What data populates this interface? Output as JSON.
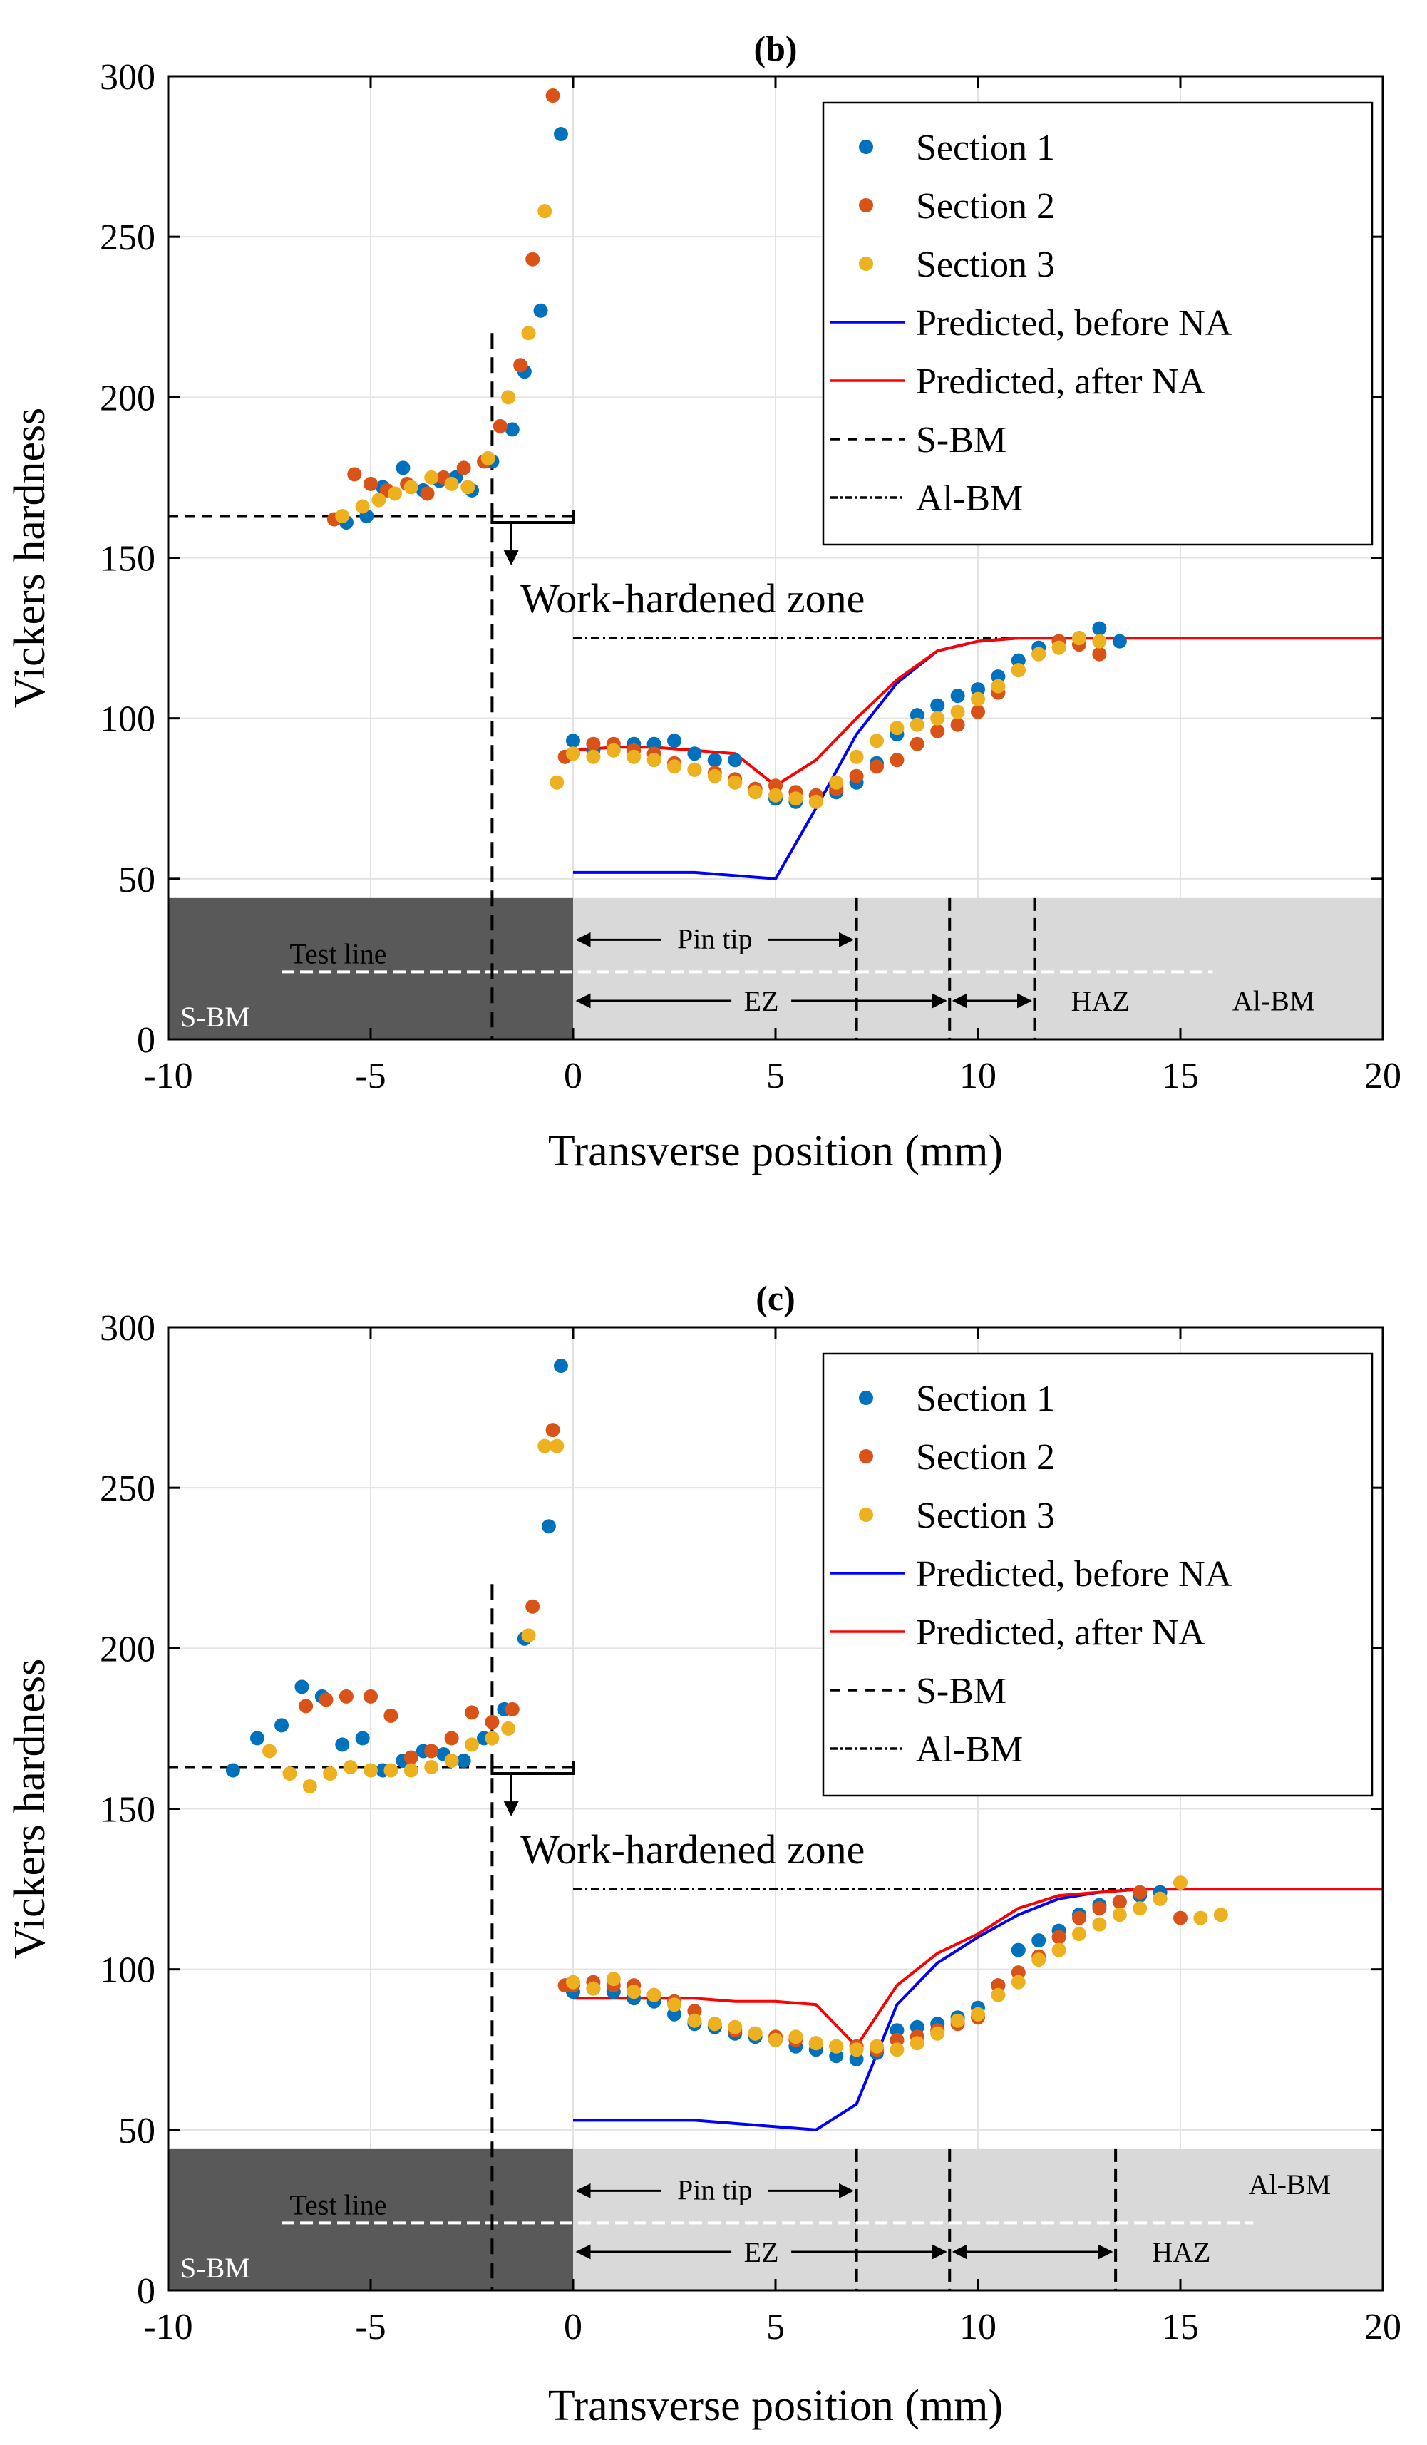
{
  "chart_data": [
    {
      "type": "scatter",
      "title": "(b)",
      "xlabel": "Transverse position (mm)",
      "ylabel": "Vickers hardness",
      "xlim": [
        -10,
        20
      ],
      "ylim": [
        0,
        300
      ],
      "xticks": [
        -10,
        -5,
        0,
        5,
        10,
        15,
        20
      ],
      "yticks": [
        0,
        50,
        100,
        150,
        200,
        250,
        300
      ],
      "grid": true,
      "legend_position": "top-right",
      "colors": {
        "s1": "#0072BD",
        "s2": "#D95319",
        "s3": "#EDB120",
        "before": "#0000FF",
        "after": "#FF0000"
      },
      "legend": [
        "Section 1",
        "Section 2",
        "Section 3",
        "Predicted, before NA",
        "Predicted, after NA",
        "S-BM",
        "Al-BM"
      ],
      "series": [
        {
          "name": "Section 1",
          "x": [
            -5.6,
            -5.1,
            -4.7,
            -4.2,
            -3.7,
            -3.3,
            -2.9,
            -2.5,
            -2.0,
            -1.5,
            -1.2,
            -0.8,
            -0.3,
            0,
            0.5,
            1,
            1.5,
            2,
            2.5,
            3,
            3.5,
            4,
            4.5,
            5,
            5.5,
            6,
            6.5,
            7,
            7.5,
            8,
            8.5,
            9,
            9.5,
            10,
            10.5,
            11,
            11.5,
            12,
            12.5,
            13,
            13.5
          ],
          "y": [
            161,
            163,
            172,
            178,
            171,
            174,
            175,
            171,
            180,
            190,
            208,
            227,
            282,
            93,
            90,
            91,
            92,
            92,
            93,
            89,
            87,
            87,
            78,
            75,
            74,
            76,
            77,
            80,
            86,
            95,
            101,
            104,
            107,
            109,
            113,
            118,
            122,
            124,
            125,
            128,
            124
          ]
        },
        {
          "name": "Section 2",
          "x": [
            -5.9,
            -5.4,
            -5.0,
            -4.6,
            -4.1,
            -3.6,
            -3.2,
            -2.7,
            -2.2,
            -1.8,
            -1.3,
            -1.0,
            -0.5,
            -0.2,
            0,
            0.5,
            1,
            1.5,
            2,
            2.5,
            3,
            3.5,
            4,
            4.5,
            5,
            5.5,
            6,
            6.5,
            7,
            7.5,
            8,
            8.5,
            9,
            9.5,
            10,
            10.5,
            11,
            11.5,
            12,
            12.5,
            13
          ],
          "y": [
            162,
            176,
            173,
            171,
            173,
            170,
            175,
            178,
            180,
            191,
            210,
            243,
            294,
            88,
            89,
            92,
            92,
            90,
            89,
            86,
            84,
            83,
            81,
            78,
            79,
            77,
            76,
            78,
            82,
            85,
            87,
            92,
            96,
            98,
            102,
            108,
            115,
            120,
            124,
            123,
            120
          ]
        },
        {
          "name": "Section 3",
          "x": [
            -5.7,
            -5.2,
            -4.8,
            -4.4,
            -4.0,
            -3.5,
            -3.0,
            -2.6,
            -2.1,
            -1.6,
            -1.1,
            -0.7,
            -0.4,
            0,
            0.5,
            1,
            1.5,
            2,
            2.5,
            3,
            3.5,
            4,
            4.5,
            5,
            5.5,
            6,
            6.5,
            7,
            7.5,
            8,
            8.5,
            9,
            9.5,
            10,
            10.5,
            11,
            11.5,
            12,
            12.5,
            13
          ],
          "y": [
            163,
            166,
            168,
            170,
            172,
            175,
            173,
            172,
            181,
            200,
            220,
            258,
            80,
            89,
            88,
            90,
            88,
            87,
            85,
            84,
            82,
            80,
            77,
            76,
            75,
            74,
            80,
            88,
            93,
            97,
            98,
            100,
            102,
            106,
            110,
            115,
            120,
            122,
            125,
            124
          ]
        },
        {
          "name": "Predicted, before NA",
          "x": [
            0,
            1,
            2,
            3,
            4,
            5,
            6,
            7,
            8,
            9,
            10,
            11,
            12,
            13,
            14,
            15,
            16,
            17,
            18,
            19,
            20
          ],
          "y": [
            52,
            52,
            52,
            52,
            51,
            50,
            72,
            95,
            111,
            121,
            124,
            125,
            125,
            125,
            125,
            125,
            125,
            125,
            125,
            125,
            125
          ]
        },
        {
          "name": "Predicted, after NA",
          "x": [
            0,
            1,
            2,
            3,
            4,
            5,
            6,
            7,
            8,
            9,
            10,
            11,
            12,
            13,
            14,
            15,
            16,
            17,
            18,
            19,
            20
          ],
          "y": [
            90,
            91,
            91,
            90,
            89,
            79,
            87,
            100,
            112,
            121,
            124,
            125,
            125,
            125,
            125,
            125,
            125,
            125,
            125,
            125,
            125
          ]
        },
        {
          "name": "S-BM",
          "x": [
            -10,
            0
          ],
          "y": [
            163,
            163
          ]
        },
        {
          "name": "Al-BM",
          "x": [
            0,
            20
          ],
          "y": [
            125,
            125
          ]
        }
      ],
      "annotations": {
        "work_hardened": "Work-hardened zone",
        "sbm": "S-BM",
        "albm": "Al-BM",
        "test_line": "Test line",
        "pin_tip": "Pin tip",
        "ez": "EZ",
        "haz": "HAZ"
      },
      "regions": {
        "steel_block": [
          -10,
          0
        ],
        "al_block": [
          0,
          20
        ],
        "block_top_y": 44,
        "pin_tip_end": 7,
        "ez_end": 9.3,
        "haz_end": 11.4,
        "test_line_x": [
          -7.2,
          15.8
        ],
        "work_hardened_x": [
          -2,
          0
        ]
      }
    },
    {
      "type": "scatter",
      "title": "(c)",
      "xlabel": "Transverse position (mm)",
      "ylabel": "Vickers hardness",
      "xlim": [
        -10,
        20
      ],
      "ylim": [
        0,
        300
      ],
      "xticks": [
        -10,
        -5,
        0,
        5,
        10,
        15,
        20
      ],
      "yticks": [
        0,
        50,
        100,
        150,
        200,
        250,
        300
      ],
      "grid": true,
      "legend_position": "top-right",
      "colors": {
        "s1": "#0072BD",
        "s2": "#D95319",
        "s3": "#EDB120",
        "before": "#0000FF",
        "after": "#FF0000"
      },
      "legend": [
        "Section 1",
        "Section 2",
        "Section 3",
        "Predicted, before NA",
        "Predicted, after NA",
        "S-BM",
        "Al-BM"
      ],
      "series": [
        {
          "name": "Section 1",
          "x": [
            -8.4,
            -7.8,
            -7.2,
            -6.7,
            -6.2,
            -5.7,
            -5.2,
            -4.7,
            -4.2,
            -3.7,
            -3.2,
            -2.7,
            -2.2,
            -1.7,
            -1.2,
            -0.6,
            -0.3,
            0,
            0.5,
            1,
            1.5,
            2,
            2.5,
            3,
            3.5,
            4,
            4.5,
            5,
            5.5,
            6,
            6.5,
            7,
            7.5,
            8,
            8.5,
            9,
            9.5,
            10,
            10.5,
            11,
            11.5,
            12,
            12.5,
            13,
            13.5,
            14,
            14.5
          ],
          "y": [
            162,
            172,
            176,
            188,
            185,
            170,
            172,
            162,
            165,
            168,
            167,
            165,
            172,
            181,
            203,
            238,
            288,
            93,
            94,
            93,
            91,
            90,
            86,
            83,
            82,
            80,
            79,
            78,
            76,
            75,
            73,
            72,
            74,
            81,
            82,
            83,
            85,
            88,
            95,
            106,
            109,
            112,
            117,
            120,
            121,
            123,
            124
          ]
        },
        {
          "name": "Section 2",
          "x": [
            -6.6,
            -6.1,
            -5.6,
            -5.0,
            -4.5,
            -4.0,
            -3.5,
            -3.0,
            -2.5,
            -2.0,
            -1.5,
            -1.0,
            -0.5,
            -0.2,
            0,
            0.5,
            1,
            1.5,
            2,
            2.5,
            3,
            3.5,
            4,
            4.5,
            5,
            5.5,
            6,
            6.5,
            7,
            7.5,
            8,
            8.5,
            9,
            9.5,
            10,
            10.5,
            11,
            11.5,
            12,
            12.5,
            13,
            13.5,
            14,
            14.5,
            15
          ],
          "y": [
            182,
            184,
            185,
            185,
            179,
            166,
            168,
            172,
            180,
            177,
            181,
            213,
            268,
            95,
            95,
            96,
            95,
            95,
            92,
            90,
            87,
            83,
            81,
            80,
            79,
            78,
            77,
            76,
            76,
            75,
            78,
            79,
            81,
            83,
            85,
            95,
            99,
            104,
            110,
            116,
            119,
            121,
            124,
            122,
            116
          ]
        },
        {
          "name": "Section 3",
          "x": [
            -7.5,
            -7.0,
            -6.5,
            -6.0,
            -5.5,
            -5.0,
            -4.5,
            -4.0,
            -3.5,
            -3.0,
            -2.5,
            -2.0,
            -1.6,
            -1.1,
            -0.7,
            -0.4,
            0,
            0.5,
            1,
            1.5,
            2,
            2.5,
            3,
            3.5,
            4,
            4.5,
            5,
            5.5,
            6,
            6.5,
            7,
            7.5,
            8,
            8.5,
            9,
            9.5,
            10,
            10.5,
            11,
            11.5,
            12,
            12.5,
            13,
            13.5,
            14,
            14.5,
            15,
            15.5,
            16
          ],
          "y": [
            168,
            161,
            157,
            161,
            163,
            162,
            162,
            162,
            163,
            165,
            170,
            172,
            175,
            204,
            263,
            263,
            96,
            94,
            97,
            93,
            92,
            89,
            84,
            83,
            82,
            80,
            78,
            79,
            77,
            76,
            75,
            76,
            75,
            77,
            80,
            84,
            86,
            92,
            96,
            103,
            106,
            111,
            114,
            117,
            119,
            122,
            127,
            116,
            117
          ]
        },
        {
          "name": "Predicted, before NA",
          "x": [
            0,
            1,
            2,
            3,
            4,
            5,
            6,
            7,
            8,
            9,
            10,
            11,
            12,
            13,
            14,
            15,
            16,
            17,
            18,
            19,
            20
          ],
          "y": [
            53,
            53,
            53,
            53,
            52,
            51,
            50,
            58,
            89,
            102,
            110,
            117,
            122,
            124,
            125,
            125,
            125,
            125,
            125,
            125,
            125
          ]
        },
        {
          "name": "Predicted, after NA",
          "x": [
            0,
            1,
            2,
            3,
            4,
            5,
            6,
            7,
            8,
            9,
            10,
            11,
            12,
            13,
            14,
            15,
            16,
            17,
            18,
            19,
            20
          ],
          "y": [
            91,
            91,
            91,
            91,
            90,
            90,
            89,
            76,
            95,
            105,
            111,
            119,
            123,
            124,
            125,
            125,
            125,
            125,
            125,
            125,
            125
          ]
        },
        {
          "name": "S-BM",
          "x": [
            -10,
            0
          ],
          "y": [
            163,
            163
          ]
        },
        {
          "name": "Al-BM",
          "x": [
            0,
            20
          ],
          "y": [
            125,
            125
          ]
        }
      ],
      "annotations": {
        "work_hardened": "Work-hardened zone",
        "sbm": "S-BM",
        "albm": "Al-BM",
        "test_line": "Test line",
        "pin_tip": "Pin tip",
        "ez": "EZ",
        "haz": "HAZ"
      },
      "regions": {
        "steel_block": [
          -10,
          0
        ],
        "al_block": [
          0,
          20
        ],
        "block_top_y": 44,
        "pin_tip_end": 7,
        "ez_end": 9.3,
        "haz_end": 13.4,
        "test_line_x": [
          -7.2,
          16.8
        ],
        "work_hardened_x": [
          -2,
          0
        ]
      }
    }
  ]
}
